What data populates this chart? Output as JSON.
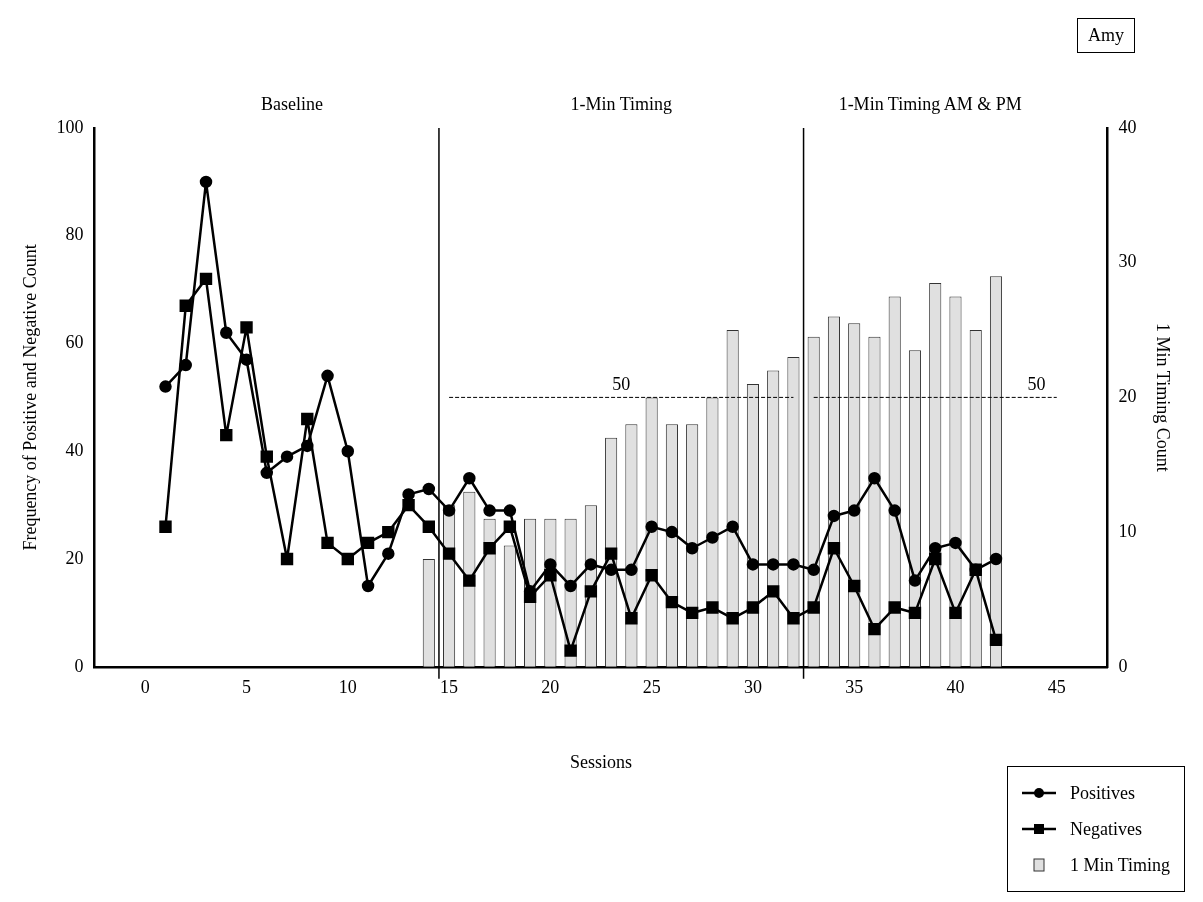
{
  "chart_data": {
    "type": "line",
    "title": "Amy",
    "xlabel": "Sessions",
    "ylabel": "Frequency of Positive and Negative Count",
    "y2label": "1 Min Timing Count",
    "xlim": [
      0,
      45
    ],
    "xticks": [
      0,
      5,
      10,
      15,
      20,
      25,
      30,
      35,
      40,
      45
    ],
    "ylim": [
      0,
      100
    ],
    "yticks": [
      0,
      20,
      40,
      60,
      80,
      100
    ],
    "y2lim": [
      0,
      40
    ],
    "y2ticks": [
      0,
      10,
      20,
      30,
      40
    ],
    "legend": "bottom right",
    "series": [
      {
        "name": "Positives",
        "color": "#000000",
        "marker": "circle",
        "x": [
          1,
          2,
          3,
          4,
          5,
          6,
          7,
          8,
          9,
          10,
          11,
          12,
          13,
          14,
          15,
          16,
          17,
          18,
          19,
          20,
          21,
          22,
          23,
          24,
          25,
          26,
          27,
          28,
          29,
          30,
          31,
          32,
          33,
          34,
          35,
          36,
          37,
          38,
          39,
          40,
          41,
          42
        ],
        "values": [
          52,
          56,
          90,
          62,
          57,
          36,
          39,
          41,
          54,
          40,
          15,
          21,
          32,
          33,
          29,
          35,
          29,
          29,
          14,
          19,
          15,
          19,
          18,
          18,
          26,
          25,
          22,
          24,
          26,
          19,
          19,
          19,
          18,
          28,
          29,
          35,
          29,
          16,
          22,
          23,
          18,
          20
        ]
      },
      {
        "name": "Negatives",
        "color": "#000000",
        "marker": "square",
        "x": [
          1,
          2,
          3,
          4,
          5,
          6,
          7,
          8,
          9,
          10,
          11,
          12,
          13,
          14,
          15,
          16,
          17,
          18,
          19,
          20,
          21,
          22,
          23,
          24,
          25,
          26,
          27,
          28,
          29,
          30,
          31,
          32,
          33,
          34,
          35,
          36,
          37,
          38,
          39,
          40,
          41,
          42
        ],
        "values": [
          26,
          67,
          72,
          43,
          63,
          39,
          20,
          46,
          23,
          20,
          23,
          25,
          30,
          26,
          21,
          16,
          22,
          26,
          13,
          17,
          3,
          14,
          21,
          9,
          17,
          12,
          10,
          11,
          9,
          11,
          14,
          9,
          11,
          22,
          15,
          7,
          11,
          10,
          20,
          10,
          18,
          5
        ]
      },
      {
        "type": "bar",
        "name": "1 Min Timing",
        "axis": "y2",
        "color": "#e0e0e0",
        "x": [
          14,
          15,
          16,
          17,
          18,
          19,
          20,
          21,
          22,
          23,
          24,
          25,
          26,
          27,
          28,
          29,
          30,
          31,
          32,
          33,
          34,
          35,
          36,
          37,
          38,
          39,
          40,
          41,
          42
        ],
        "values": [
          8,
          12,
          13,
          11,
          9,
          11,
          11,
          11,
          12,
          17,
          18,
          20,
          18,
          18,
          20,
          25,
          21,
          22,
          23,
          24.5,
          26,
          25.5,
          24.5,
          27.5,
          23.5,
          28.5,
          27.5,
          25,
          29
        ]
      },
      {
        "color": "#000000",
        "marker": "none",
        "line_style": "dashed",
        "x": [
          15,
          32
        ],
        "values": [
          50,
          50
        ]
      },
      {
        "color": "#000000",
        "marker": "none",
        "line_style": "dashed",
        "x": [
          33,
          45
        ],
        "values": [
          50,
          50
        ]
      }
    ],
    "ref_lines": [
      {
        "axis": "x",
        "value": 14.5,
        "color": "#000000"
      },
      {
        "axis": "x",
        "value": 32.5,
        "color": "#000000"
      }
    ],
    "annotations": [
      "Baseline",
      "1-Min Timing",
      "1-Min Timing AM & PM",
      {
        "text": "50",
        "x": 23.5,
        "y": 50
      },
      {
        "text": "50",
        "x": 44,
        "y": 50
      }
    ]
  }
}
